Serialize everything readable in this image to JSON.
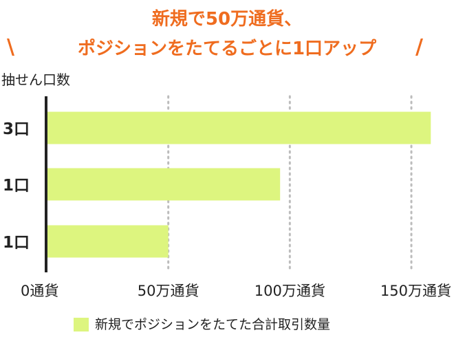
{
  "colors": {
    "title": "#ef6c1f",
    "bar": "#ddf57f",
    "axis": "#222222",
    "grid": "#bcbcbc"
  },
  "chart_data": {
    "type": "bar",
    "orientation": "horizontal",
    "title": [
      "新規で50万通貨、",
      "ポジションをたてるごとに1口アップ"
    ],
    "title_decorations": [
      "\\",
      "/"
    ],
    "ylabel": "抽せん口数",
    "xlabel": "",
    "categories": [
      "3口",
      "1口",
      "1口"
    ],
    "series": [
      {
        "name": "新規でポジションをたてた合計取引数量",
        "values": [
          1580000,
          960000,
          500000
        ]
      }
    ],
    "xlim": [
      0,
      1500000
    ],
    "xticks": [
      0,
      500000,
      1000000,
      1500000
    ],
    "xtick_labels": [
      "0通貨",
      "50万通貨",
      "100万通貨",
      "150万通貨"
    ],
    "grid": "vertical-dotted",
    "legend": "bottom"
  }
}
